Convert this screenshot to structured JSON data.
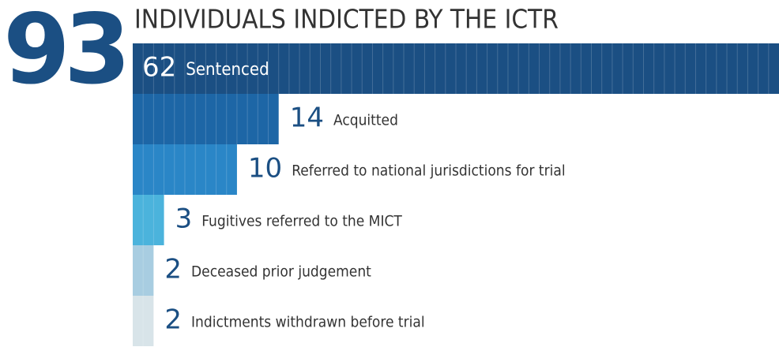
{
  "chart_data": {
    "type": "bar",
    "orientation": "horizontal",
    "title": "INDIVIDUALS INDICTED BY THE ICTR",
    "total": 93,
    "categories": [
      "Sentenced",
      "Acquitted",
      "Referred to national jurisdictions for trial",
      "Fugitives referred to the MICT",
      "Deceased prior judgement",
      "Indictments withdrawn before trial"
    ],
    "values": [
      62,
      14,
      10,
      3,
      2,
      2
    ],
    "colors": [
      "#1b4f83",
      "#1d66a6",
      "#2a86c7",
      "#4bb3dc",
      "#a8cde1",
      "#d8e4e9"
    ]
  }
}
